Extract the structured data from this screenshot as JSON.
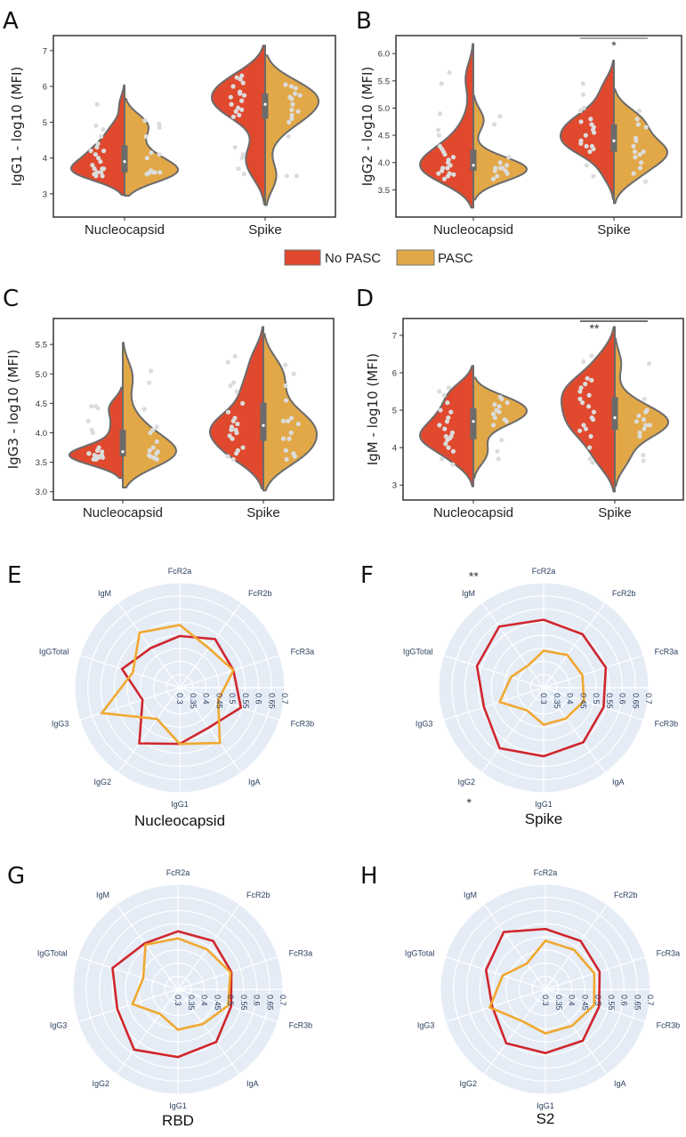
{
  "legend": {
    "items": [
      {
        "label": "No PASC",
        "color": "#e0492e"
      },
      {
        "label": "PASC",
        "color": "#e2a847"
      }
    ]
  },
  "chart_data": [
    {
      "panel": "A",
      "type": "violin",
      "ylabel": "IgG1 - log10 (MFI)",
      "ylim": [
        2.35,
        7.42
      ],
      "yticks": [
        "3",
        "4",
        "5",
        "6",
        "7"
      ],
      "categories": [
        "Nucleocapsid",
        "Spike"
      ],
      "series": [
        {
          "name": "No PASC",
          "values": [
            [
              5.5,
              4.9,
              4.8,
              4.6,
              4.4,
              4.3,
              4.2,
              4.2,
              4.1,
              4.0,
              3.9,
              3.8,
              3.7,
              3.7,
              3.6,
              3.6,
              3.55,
              3.5,
              3.5,
              3.6,
              3.7
            ],
            [
              6.3,
              6.25,
              6.2,
              6.1,
              6.0,
              5.85,
              5.8,
              5.75,
              5.7,
              5.6,
              5.5,
              5.4,
              5.35,
              5.3,
              5.2,
              5.15,
              4.3,
              4.1,
              4.0,
              3.7,
              3.55
            ]
          ]
        },
        {
          "name": "PASC",
          "values": [
            [
              5.05,
              4.95,
              4.85,
              4.6,
              4.15,
              4.1,
              4.0,
              3.65,
              3.6,
              3.6,
              3.58,
              3.55,
              3.6,
              3.62
            ],
            [
              6.05,
              6.0,
              5.95,
              5.8,
              5.75,
              5.7,
              5.65,
              5.5,
              5.35,
              5.3,
              5.2,
              5.1,
              5.0,
              4.6,
              3.5,
              3.5
            ]
          ]
        }
      ],
      "significance": []
    },
    {
      "panel": "B",
      "type": "violin",
      "ylabel": "IgG2 - log10 (MFI)",
      "ylim": [
        3.0,
        6.33
      ],
      "yticks": [
        "3.5",
        "4.0",
        "4.5",
        "5.0",
        "5.5",
        "6.0"
      ],
      "categories": [
        "Nucleocapsid",
        "Spike"
      ],
      "series": [
        {
          "name": "No PASC",
          "values": [
            [
              5.65,
              5.45,
              4.9,
              4.6,
              4.5,
              4.3,
              4.25,
              4.2,
              4.15,
              4.1,
              4.05,
              4.0,
              3.95,
              3.9,
              3.9,
              3.85,
              3.8,
              3.8,
              3.78,
              3.75,
              3.7
            ],
            [
              5.45,
              5.25,
              5.0,
              4.95,
              4.8,
              4.75,
              4.7,
              4.65,
              4.6,
              4.55,
              4.5,
              4.4,
              4.35,
              4.3,
              4.3,
              4.25,
              4.2,
              3.95,
              3.75
            ]
          ]
        },
        {
          "name": "PASC",
          "values": [
            [
              4.85,
              4.7,
              4.1,
              4.0,
              3.95,
              3.9,
              3.9,
              3.85,
              3.85,
              3.8,
              3.75,
              3.7,
              3.9
            ],
            [
              4.95,
              4.8,
              4.7,
              4.65,
              4.45,
              4.4,
              4.3,
              4.2,
              4.2,
              4.15,
              4.1,
              4.0,
              3.9,
              3.8,
              3.65
            ]
          ]
        }
      ],
      "significance": [
        {
          "category": "Spike",
          "label": "*"
        }
      ]
    },
    {
      "panel": "C",
      "type": "violin",
      "ylabel": "IgG3 - log10 (MFI)",
      "ylim": [
        2.86,
        5.94
      ],
      "yticks": [
        "3.0",
        "3.5",
        "4.0",
        "4.5",
        "5.0",
        "5.5"
      ],
      "categories": [
        "Nucleocapsid",
        "Spike"
      ],
      "series": [
        {
          "name": "No PASC",
          "values": [
            [
              4.45,
              4.45,
              4.42,
              4.2,
              4.05,
              4.0,
              3.75,
              3.7,
              3.68,
              3.65,
              3.62,
              3.6,
              3.6,
              3.58,
              3.58,
              3.55,
              3.55,
              3.6,
              3.62,
              3.65
            ],
            [
              5.3,
              5.2,
              4.85,
              4.8,
              4.7,
              4.5,
              4.35,
              4.25,
              4.2,
              4.15,
              4.1,
              4.05,
              4.05,
              4.0,
              3.95,
              3.9,
              3.75,
              3.7,
              3.65,
              3.6,
              3.55
            ]
          ]
        },
        {
          "name": "PASC",
          "values": [
            [
              5.05,
              4.85,
              4.4,
              4.1,
              4.05,
              4.0,
              3.85,
              3.75,
              3.7,
              3.68,
              3.65,
              3.62,
              3.6,
              3.58,
              3.57,
              3.55
            ],
            [
              5.15,
              5.0,
              4.8,
              4.55,
              4.25,
              4.2,
              4.2,
              4.15,
              4.0,
              3.9,
              3.9,
              3.7,
              3.65,
              3.55,
              3.6
            ]
          ]
        }
      ],
      "significance": []
    },
    {
      "panel": "D",
      "type": "violin",
      "ylabel": "IgM - log10 (MFI)",
      "ylim": [
        2.6,
        7.45
      ],
      "yticks": [
        "3",
        "4",
        "5",
        "6",
        "7"
      ],
      "categories": [
        "Nucleocapsid",
        "Spike"
      ],
      "series": [
        {
          "name": "No PASC",
          "values": [
            [
              5.6,
              5.5,
              5.4,
              5.2,
              5.0,
              4.95,
              4.8,
              4.7,
              4.6,
              4.5,
              4.4,
              4.3,
              4.3,
              4.25,
              4.2,
              4.1,
              4.0,
              3.9,
              3.55,
              3.7
            ],
            [
              6.45,
              6.3,
              5.85,
              5.8,
              5.7,
              5.6,
              5.5,
              5.4,
              5.3,
              5.2,
              5.1,
              4.95,
              4.8,
              4.75,
              4.6,
              4.5,
              4.45,
              4.3,
              4.0,
              3.7,
              3.6
            ]
          ]
        },
        {
          "name": "PASC",
          "values": [
            [
              5.35,
              5.3,
              5.2,
              5.15,
              5.1,
              5.0,
              4.95,
              4.9,
              4.8,
              4.75,
              4.7,
              4.6,
              4.2,
              3.9,
              3.7
            ],
            [
              6.25,
              5.3,
              5.0,
              4.95,
              4.85,
              4.75,
              4.7,
              4.6,
              4.6,
              4.5,
              4.4,
              4.3,
              3.8,
              3.65
            ]
          ]
        }
      ],
      "significance": [
        {
          "category": "Spike",
          "label": "**"
        }
      ]
    },
    {
      "panel": "E",
      "type": "radar",
      "title": "Nucleocapsid",
      "axes": [
        "FcR2a",
        "FcR2b",
        "FcR3a",
        "FcR3b",
        "IgA",
        "IgG1",
        "IgG2",
        "IgG3",
        "IgGTotal",
        "IgM"
      ],
      "radial_range": [
        0.3,
        0.7
      ],
      "radial_ticks": [
        "0.3",
        "0.35",
        "0.4",
        "0.45",
        "0.5",
        "0.55",
        "0.6",
        "0.65",
        "0.7"
      ],
      "series": [
        {
          "name": "No PASC",
          "color": "#d0262d",
          "values": [
            0.497,
            0.529,
            0.515,
            0.545,
            0.488,
            0.514,
            0.562,
            0.449,
            0.531,
            0.487
          ]
        },
        {
          "name": "PASC",
          "color": "#f0a830",
          "values": [
            0.539,
            0.487,
            0.515,
            0.454,
            0.56,
            0.514,
            0.447,
            0.612,
            0.488,
            0.56
          ]
        }
      ],
      "annotations": []
    },
    {
      "panel": "F",
      "type": "radar",
      "title": "Spike",
      "axes": [
        "FcR2a",
        "FcR2b",
        "FcR3a",
        "FcR3b",
        "IgA",
        "IgG1",
        "IgG2",
        "IgG3",
        "IgGTotal",
        "IgM"
      ],
      "radial_range": [
        0.3,
        0.7
      ],
      "radial_ticks": [
        "0.3",
        "0.35",
        "0.4",
        "0.45",
        "0.5",
        "0.55",
        "0.6",
        "0.65",
        "0.7"
      ],
      "series": [
        {
          "name": "No PASC",
          "color": "#d0262d",
          "values": [
            0.559,
            0.552,
            0.549,
            0.54,
            0.557,
            0.561,
            0.585,
            0.539,
            0.567,
            0.588
          ]
        },
        {
          "name": "PASC",
          "color": "#f0a830",
          "values": [
            0.441,
            0.454,
            0.455,
            0.462,
            0.445,
            0.441,
            0.407,
            0.476,
            0.431,
            0.403
          ]
        }
      ],
      "annotations": [
        {
          "axis": "IgM",
          "label": "**"
        },
        {
          "axis": "IgG2",
          "label": "*"
        }
      ]
    },
    {
      "panel": "G",
      "type": "radar",
      "title": "RBD",
      "axes": [
        "FcR2a",
        "FcR2b",
        "FcR3a",
        "FcR3b",
        "IgA",
        "IgG1",
        "IgG2",
        "IgG3",
        "IgGTotal",
        "IgM"
      ],
      "radial_range": [
        0.3,
        0.7
      ],
      "radial_ticks": [
        "0.3",
        "0.35",
        "0.4",
        "0.45",
        "0.5",
        "0.55",
        "0.6",
        "0.65",
        "0.7"
      ],
      "series": [
        {
          "name": "No PASC",
          "color": "#d0262d",
          "values": [
            0.521,
            0.528,
            0.514,
            0.513,
            0.548,
            0.558,
            0.584,
            0.543,
            0.562,
            0.516
          ]
        },
        {
          "name": "PASC",
          "color": "#f0a830",
          "values": [
            0.494,
            0.488,
            0.51,
            0.501,
            0.463,
            0.454,
            0.416,
            0.482,
            0.439,
            0.51
          ]
        }
      ],
      "annotations": []
    },
    {
      "panel": "H",
      "type": "radar",
      "title": "S2",
      "axes": [
        "FcR2a",
        "FcR2b",
        "FcR3a",
        "FcR3b",
        "IgA",
        "IgG1",
        "IgG2",
        "IgG3",
        "IgGTotal",
        "IgM"
      ],
      "radial_range": [
        0.3,
        0.7
      ],
      "radial_ticks": [
        "0.3",
        "0.35",
        "0.4",
        "0.45",
        "0.5",
        "0.55",
        "0.6",
        "0.65",
        "0.7"
      ],
      "series": [
        {
          "name": "No PASC",
          "color": "#d0262d",
          "values": [
            0.53,
            0.528,
            0.517,
            0.515,
            0.542,
            0.543,
            0.554,
            0.513,
            0.538,
            0.57
          ]
        },
        {
          "name": "PASC",
          "color": "#f0a830",
          "values": [
            0.485,
            0.486,
            0.496,
            0.495,
            0.472,
            0.468,
            0.45,
            0.523,
            0.471,
            0.421
          ]
        }
      ],
      "annotations": []
    }
  ]
}
